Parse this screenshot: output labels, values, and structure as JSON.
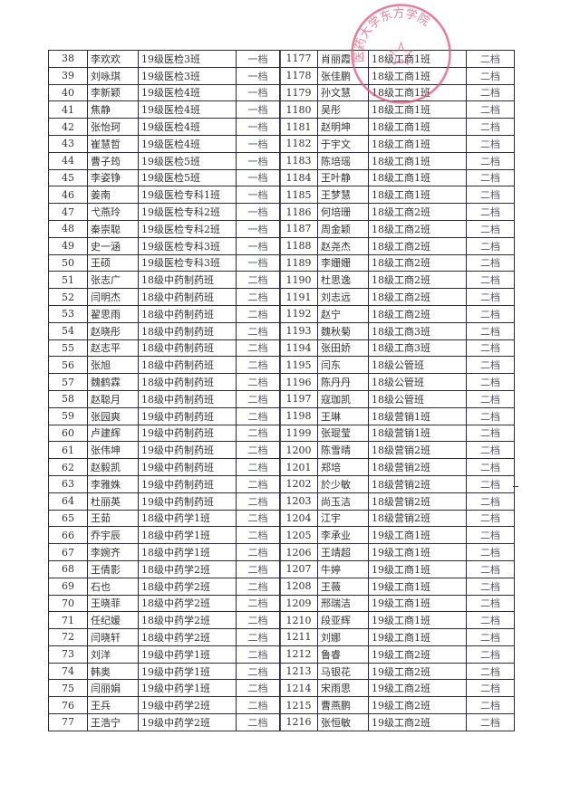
{
  "stamp": {
    "text": "医药大学东方学院",
    "color": "#e0557a"
  },
  "left_rows": [
    [
      "38",
      "李欢欢",
      "19级医检3班",
      "一档"
    ],
    [
      "39",
      "刘咏琪",
      "19级医检3班",
      "一档"
    ],
    [
      "40",
      "李新颖",
      "19级医检4班",
      "一档"
    ],
    [
      "41",
      "焦静",
      "19级医检4班",
      "一档"
    ],
    [
      "42",
      "张怡珂",
      "19级医检4班",
      "一档"
    ],
    [
      "43",
      "崔慧哲",
      "19级医检4班",
      "一档"
    ],
    [
      "44",
      "曹子筠",
      "19级医检5班",
      "一档"
    ],
    [
      "45",
      "李姿铮",
      "19级医检5班",
      "一档"
    ],
    [
      "46",
      "姜南",
      "19级医检专科1班",
      "一档"
    ],
    [
      "47",
      "弋燕玲",
      "19级医检专科2班",
      "一档"
    ],
    [
      "48",
      "秦崇聪",
      "19级医检专科2班",
      "一档"
    ],
    [
      "49",
      "史一涵",
      "19级医检专科3班",
      "一档"
    ],
    [
      "50",
      "王硕",
      "19级医检专科3班",
      "一档"
    ],
    [
      "51",
      "张志广",
      "18级中药制药班",
      "二档"
    ],
    [
      "52",
      "闫明杰",
      "18级中药制药班",
      "二档"
    ],
    [
      "53",
      "翟思雨",
      "18级中药制药班",
      "二档"
    ],
    [
      "54",
      "赵晓彤",
      "18级中药制药班",
      "二档"
    ],
    [
      "55",
      "赵志平",
      "18级中药制药班",
      "二档"
    ],
    [
      "56",
      "张旭",
      "18级中药制药班",
      "二档"
    ],
    [
      "57",
      "魏鹤霖",
      "18级中药制药班",
      "二档"
    ],
    [
      "58",
      "赵聪月",
      "18级中药制药班",
      "二档"
    ],
    [
      "59",
      "张园爽",
      "19级中药制药班",
      "二档"
    ],
    [
      "60",
      "卢建辉",
      "19级中药制药班",
      "二档"
    ],
    [
      "61",
      "张伟坤",
      "19级中药制药班",
      "二档"
    ],
    [
      "62",
      "赵毅凯",
      "19级中药制药班",
      "二档"
    ],
    [
      "63",
      "李雅姝",
      "19级中药制药班",
      "二档"
    ],
    [
      "64",
      "杜丽英",
      "19级中药制药班",
      "二档"
    ],
    [
      "65",
      "王茹",
      "18级中药学1班",
      "二档"
    ],
    [
      "66",
      "乔宇辰",
      "18级中药学1班",
      "二档"
    ],
    [
      "67",
      "李婉齐",
      "18级中药学1班",
      "二档"
    ],
    [
      "68",
      "王倩影",
      "18级中药学2班",
      "二档"
    ],
    [
      "69",
      "石也",
      "18级中药学2班",
      "二档"
    ],
    [
      "70",
      "王晓菲",
      "18级中药学2班",
      "二档"
    ],
    [
      "71",
      "任纪媛",
      "18级中药学2班",
      "二档"
    ],
    [
      "72",
      "闫晓轩",
      "18级中药学2班",
      "二档"
    ],
    [
      "73",
      "刘洋",
      "19级中药学1班",
      "二档"
    ],
    [
      "74",
      "韩奥",
      "19级中药学1班",
      "二档"
    ],
    [
      "75",
      "闫丽娟",
      "19级中药学1班",
      "二档"
    ],
    [
      "76",
      "王兵",
      "19级中药学2班",
      "二档"
    ],
    [
      "77",
      "王浩宁",
      "19级中药学2班",
      "二档"
    ]
  ],
  "right_rows": [
    [
      "1177",
      "肖丽霞",
      "18级工商1班",
      "二档"
    ],
    [
      "1178",
      "张佳鹏",
      "18级工商1班",
      "二档"
    ],
    [
      "1179",
      "孙文慧",
      "18级工商1班",
      "二档"
    ],
    [
      "1180",
      "吴彤",
      "18级工商1班",
      "二档"
    ],
    [
      "1181",
      "赵明坤",
      "18级工商1班",
      "二档"
    ],
    [
      "1182",
      "于宇文",
      "18级工商1班",
      "二档"
    ],
    [
      "1183",
      "陈培瑶",
      "18级工商1班",
      "二档"
    ],
    [
      "1184",
      "王叶静",
      "18级工商1班",
      "二档"
    ],
    [
      "1185",
      "王梦慧",
      "18级工商1班",
      "二档"
    ],
    [
      "1186",
      "何培珊",
      "18级工商2班",
      "二档"
    ],
    [
      "1187",
      "周金颖",
      "18级工商2班",
      "二档"
    ],
    [
      "1188",
      "赵尧杰",
      "18级工商2班",
      "二档"
    ],
    [
      "1189",
      "李姗姗",
      "18级工商2班",
      "二档"
    ],
    [
      "1190",
      "杜思逸",
      "18级工商2班",
      "二档"
    ],
    [
      "1191",
      "刘志远",
      "18级工商2班",
      "二档"
    ],
    [
      "1192",
      "赵宁",
      "18级工商2班",
      "二档"
    ],
    [
      "1193",
      "魏秋菊",
      "18级工商3班",
      "二档"
    ],
    [
      "1194",
      "张田娇",
      "18级工商3班",
      "二档"
    ],
    [
      "1195",
      "闫东",
      "18级公管班",
      "二档"
    ],
    [
      "1196",
      "陈丹丹",
      "18级公管班",
      "二档"
    ],
    [
      "1197",
      "寇珈凯",
      "18级公管班",
      "二档"
    ],
    [
      "1198",
      "王琳",
      "18级营销1班",
      "二档"
    ],
    [
      "1199",
      "张琨莹",
      "18级营销1班",
      "二档"
    ],
    [
      "1200",
      "陈雪晴",
      "18级营销2班",
      "二档"
    ],
    [
      "1201",
      "郑培",
      "18级营销2班",
      "二档"
    ],
    [
      "1202",
      "於少敏",
      "18级营销2班",
      "二档"
    ],
    [
      "1203",
      "尚玉洁",
      "18级营销2班",
      "二档"
    ],
    [
      "1204",
      "江宇",
      "18级营销2班",
      "二档"
    ],
    [
      "1205",
      "李承业",
      "19级工商1班",
      "二档"
    ],
    [
      "1206",
      "王靖超",
      "19级工商1班",
      "二档"
    ],
    [
      "1207",
      "牛婷",
      "19级工商1班",
      "二档"
    ],
    [
      "1208",
      "王薇",
      "19级工商1班",
      "二档"
    ],
    [
      "1209",
      "邢瑞洁",
      "19级工商1班",
      "二档"
    ],
    [
      "1210",
      "段亚辉",
      "19级工商1班",
      "二档"
    ],
    [
      "1211",
      "刘娜",
      "19级工商1班",
      "二档"
    ],
    [
      "1212",
      "鲁睿",
      "19级工商2班",
      "二档"
    ],
    [
      "1213",
      "马银花",
      "19级工商2班",
      "二档"
    ],
    [
      "1214",
      "宋雨思",
      "19级工商2班",
      "二档"
    ],
    [
      "1215",
      "曹燕鹏",
      "19级工商2班",
      "二档"
    ],
    [
      "1216",
      "张恒敏",
      "19级工商2班",
      "二档"
    ]
  ]
}
